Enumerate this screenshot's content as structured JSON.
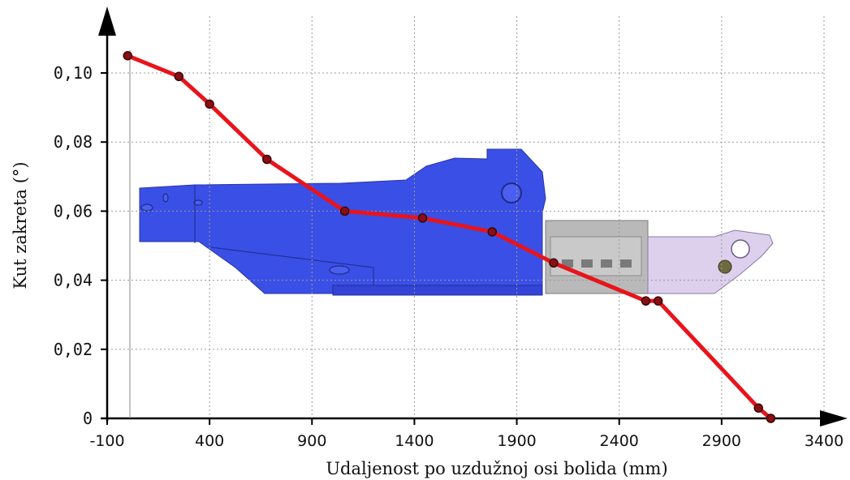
{
  "chart_data": {
    "type": "line",
    "title": "",
    "xlabel": "Udaljenost po uzdužnoj osi bolida (mm)",
    "ylabel": "Kut zakreta (°)",
    "xlim": [
      -100,
      3400
    ],
    "ylim": [
      0,
      0.1
    ],
    "xticks": [
      -100,
      400,
      900,
      1400,
      1900,
      2400,
      2900,
      3400
    ],
    "xtick_labels": [
      "-100",
      "400",
      "900",
      "1400",
      "1900",
      "2400",
      "2900",
      "3400"
    ],
    "yticks": [
      0,
      0.02,
      0.04,
      0.06,
      0.08,
      0.1
    ],
    "ytick_labels": [
      "0",
      "0,02",
      "0,04",
      "0,06",
      "0,08",
      "0,10"
    ],
    "grid": true,
    "series": [
      {
        "color": "#e8141b",
        "marker_color": "#8a0f14",
        "x": [
          0,
          250,
          400,
          680,
          1060,
          1440,
          1780,
          2080,
          2530,
          2590,
          3080,
          3140
        ],
        "y": [
          0.105,
          0.099,
          0.091,
          0.075,
          0.06,
          0.058,
          0.054,
          0.045,
          0.034,
          0.034,
          0.003,
          0.0
        ]
      }
    ]
  },
  "background_image": {
    "semantic": "vehicle-chassis-crash-structure-illustration",
    "colors": {
      "front": "#3a4fe6",
      "middle": "#b9b9b9",
      "rear": "#dcd0ec"
    }
  }
}
